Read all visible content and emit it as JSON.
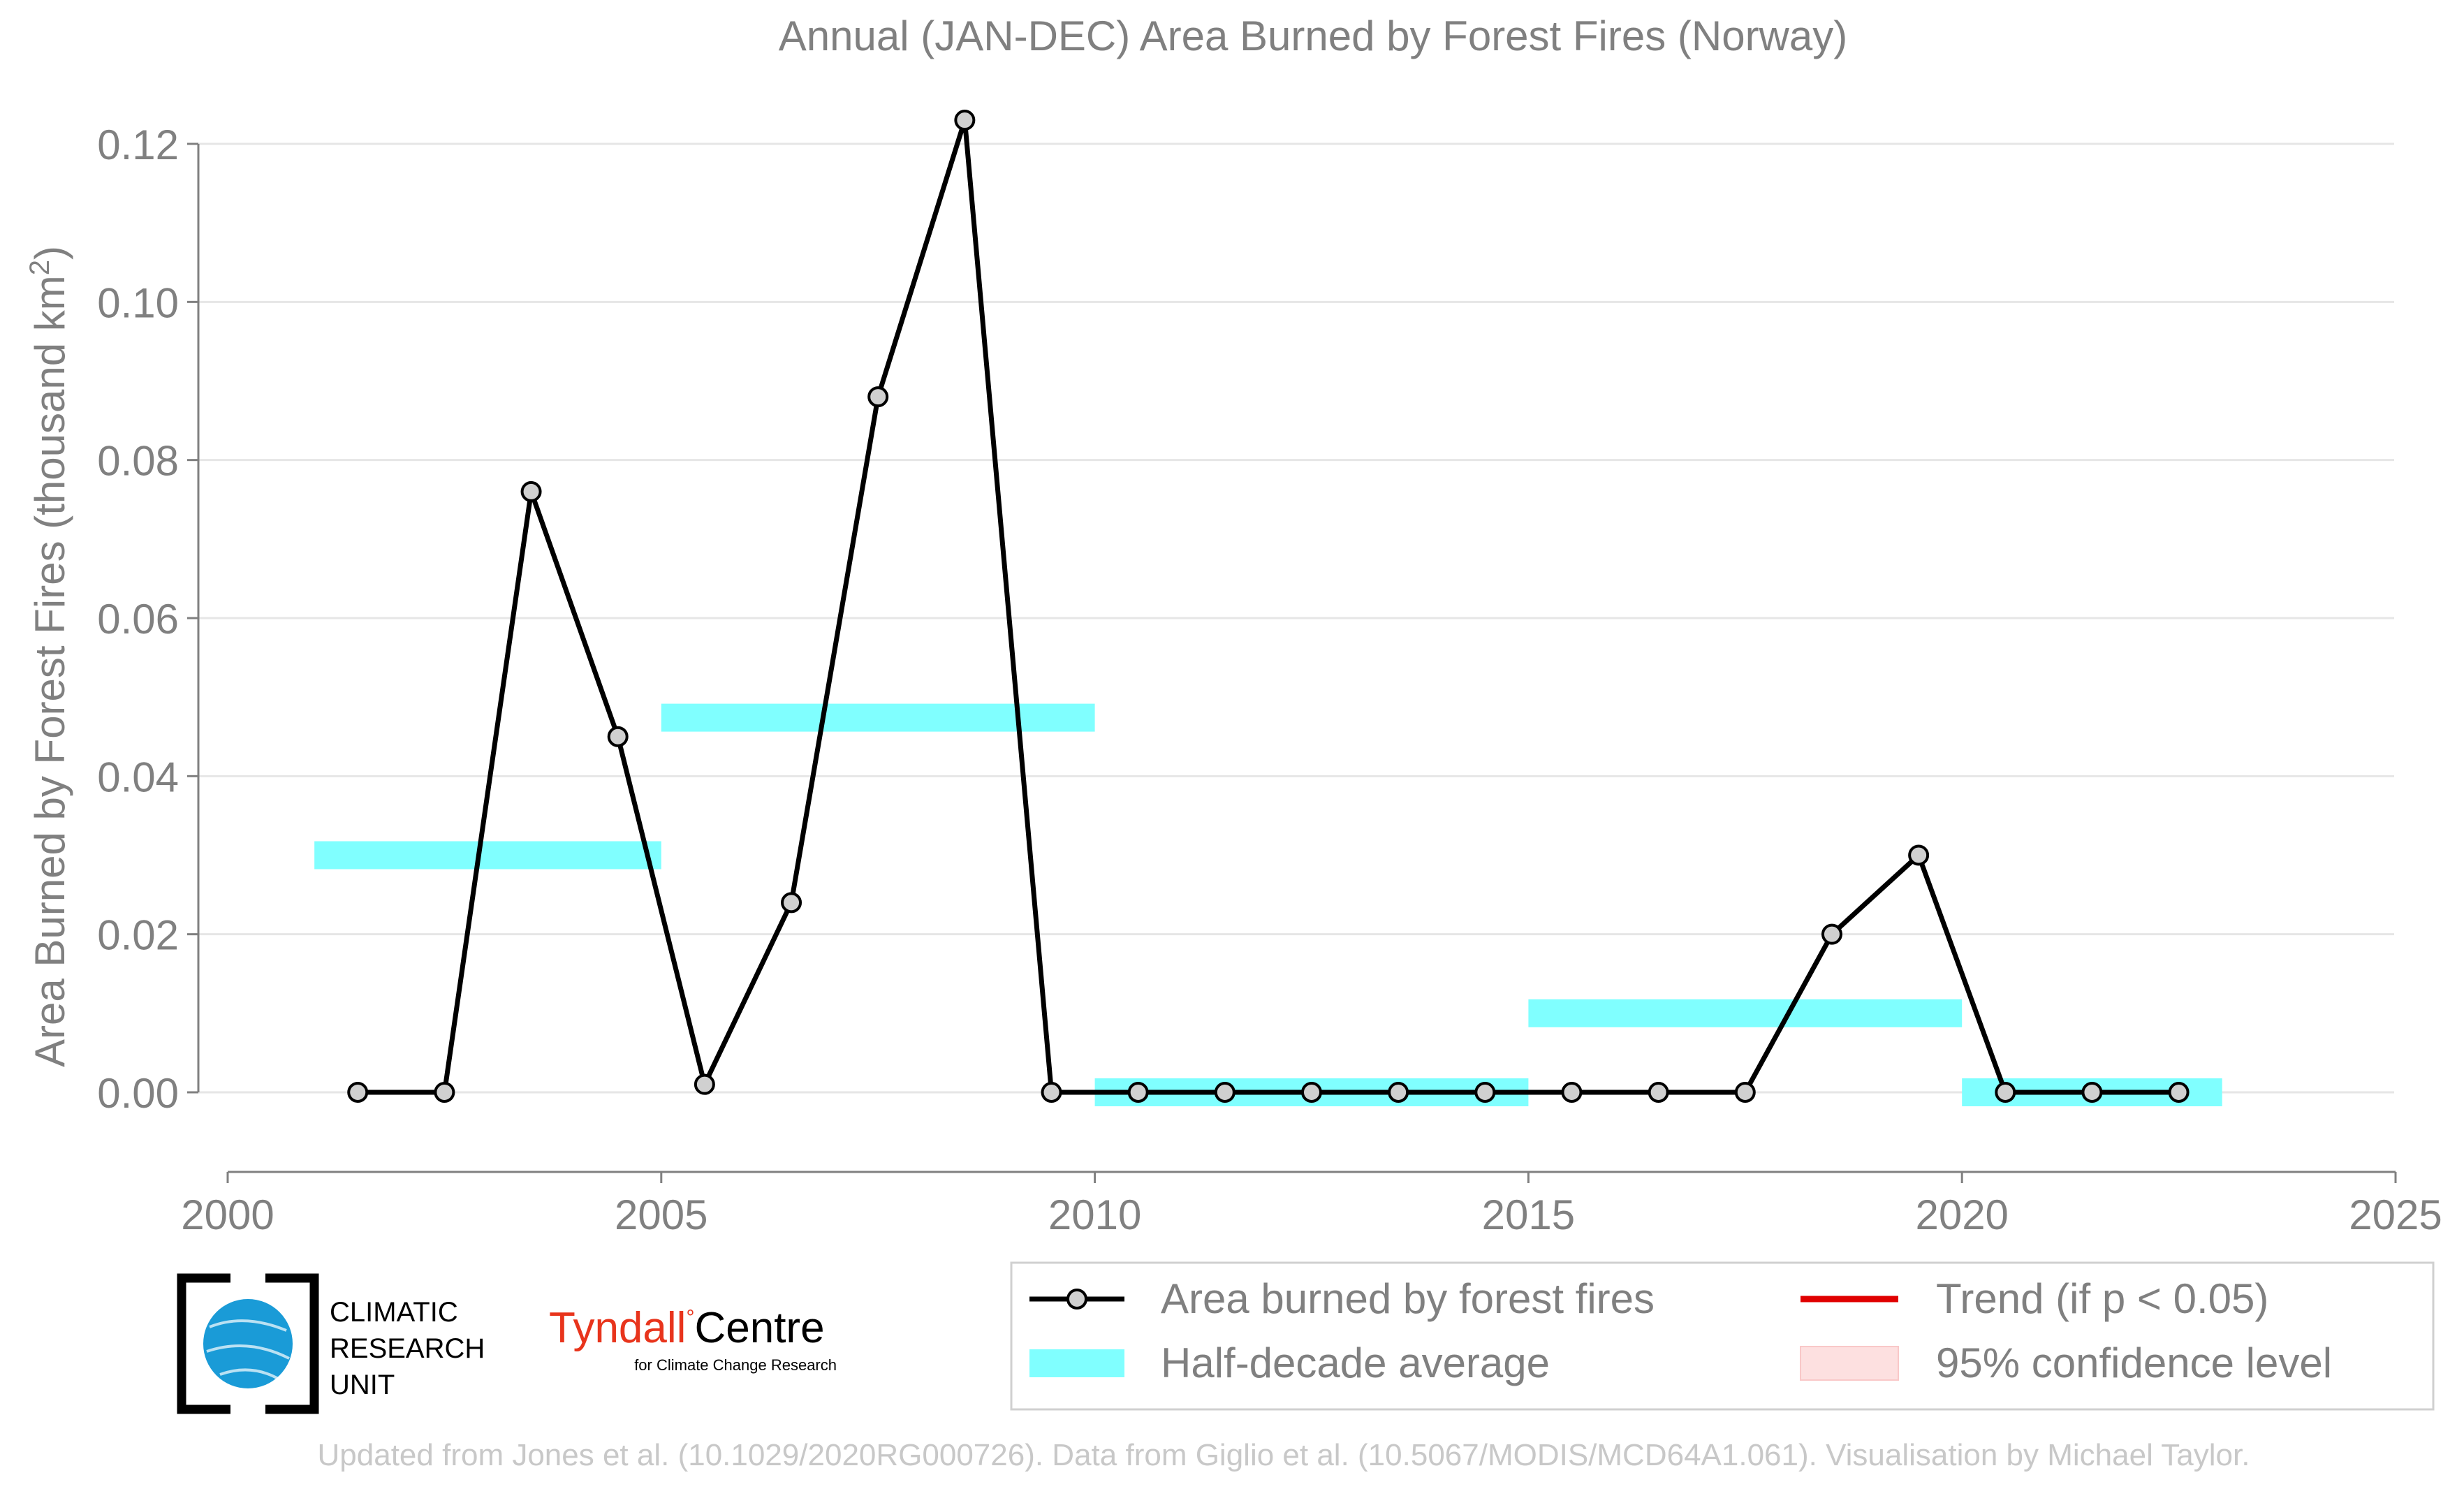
{
  "chart_data": {
    "type": "line",
    "title": "Annual (JAN-DEC) Area Burned by Forest Fires (Norway)",
    "ylabel": "Area Burned by Forest Fires (thousand km",
    "ylabel_sup": "2",
    "ylabel_close": ")",
    "xlabel": "",
    "xlim": [
      2000,
      2025
    ],
    "ylim": [
      -0.01,
      0.123
    ],
    "grid": true,
    "legend_position": "bottom-right",
    "x_ticks": [
      2000,
      2005,
      2010,
      2015,
      2020,
      2025
    ],
    "x_tick_labels": [
      "2000",
      "2005",
      "2010",
      "2015",
      "2020",
      "2025"
    ],
    "y_ticks": [
      0.0,
      0.02,
      0.04,
      0.06,
      0.08,
      0.1,
      0.12
    ],
    "y_tick_labels": [
      "0.00",
      "0.02",
      "0.04",
      "0.06",
      "0.08",
      "0.10",
      "0.12"
    ],
    "series": [
      {
        "name": "Area burned by forest fires",
        "color": "#000000",
        "marker_fill": "#d0d0d0",
        "x": [
          2001.5,
          2002.5,
          2003.5,
          2004.5,
          2005.5,
          2006.5,
          2007.5,
          2008.5,
          2009.5,
          2010.5,
          2011.5,
          2012.5,
          2013.5,
          2014.5,
          2015.5,
          2016.5,
          2017.5,
          2018.5,
          2019.5,
          2020.5,
          2021.5,
          2022.5
        ],
        "values": [
          0.0,
          0.0,
          0.076,
          0.045,
          0.001,
          0.024,
          0.088,
          0.123,
          0.0,
          0.0,
          0.0,
          0.0,
          0.0,
          0.0,
          0.0,
          0.0,
          0.0,
          0.02,
          0.03,
          0.0,
          0.0,
          0.0
        ]
      }
    ],
    "half_decade_average": {
      "name": "Half-decade average",
      "color": "#80ffff",
      "segments": [
        {
          "x_start": 2001,
          "x_end": 2005,
          "value": 0.03
        },
        {
          "x_start": 2005,
          "x_end": 2010,
          "value": 0.0474
        },
        {
          "x_start": 2010,
          "x_end": 2015,
          "value": 0.0
        },
        {
          "x_start": 2015,
          "x_end": 2020,
          "value": 0.01
        },
        {
          "x_start": 2020,
          "x_end": 2023,
          "value": 0.0
        }
      ]
    },
    "legend": [
      {
        "label": "Area burned by forest fires",
        "kind": "line-marker",
        "color": "#000000"
      },
      {
        "label": "Half-decade average",
        "kind": "band",
        "color": "#80ffff"
      },
      {
        "label": "Trend (if p < 0.05)",
        "kind": "line",
        "color": "#e00000"
      },
      {
        "label": "95% confidence level",
        "kind": "band",
        "color": "#fde0e0"
      }
    ]
  },
  "logos": {
    "cru_line1": "CLIMATIC",
    "cru_line2": "RESEARCH",
    "cru_line3": "UNIT",
    "tyndall_main": "Tyndall",
    "tyndall_centre": "Centre",
    "tyndall_sub": "for Climate Change Research"
  },
  "footer": "Updated from Jones et al. (10.1029/2020RG000726). Data from Giglio et al. (10.5067/MODIS/MCD64A1.061). Visualisation by Michael Taylor.",
  "colors": {
    "text_gray": "#808080",
    "footer_gray": "#c8c8c8",
    "grid": "#e6e6e6",
    "cru_blue": "#1a9bd7",
    "tyndall_red": "#e8341c"
  }
}
